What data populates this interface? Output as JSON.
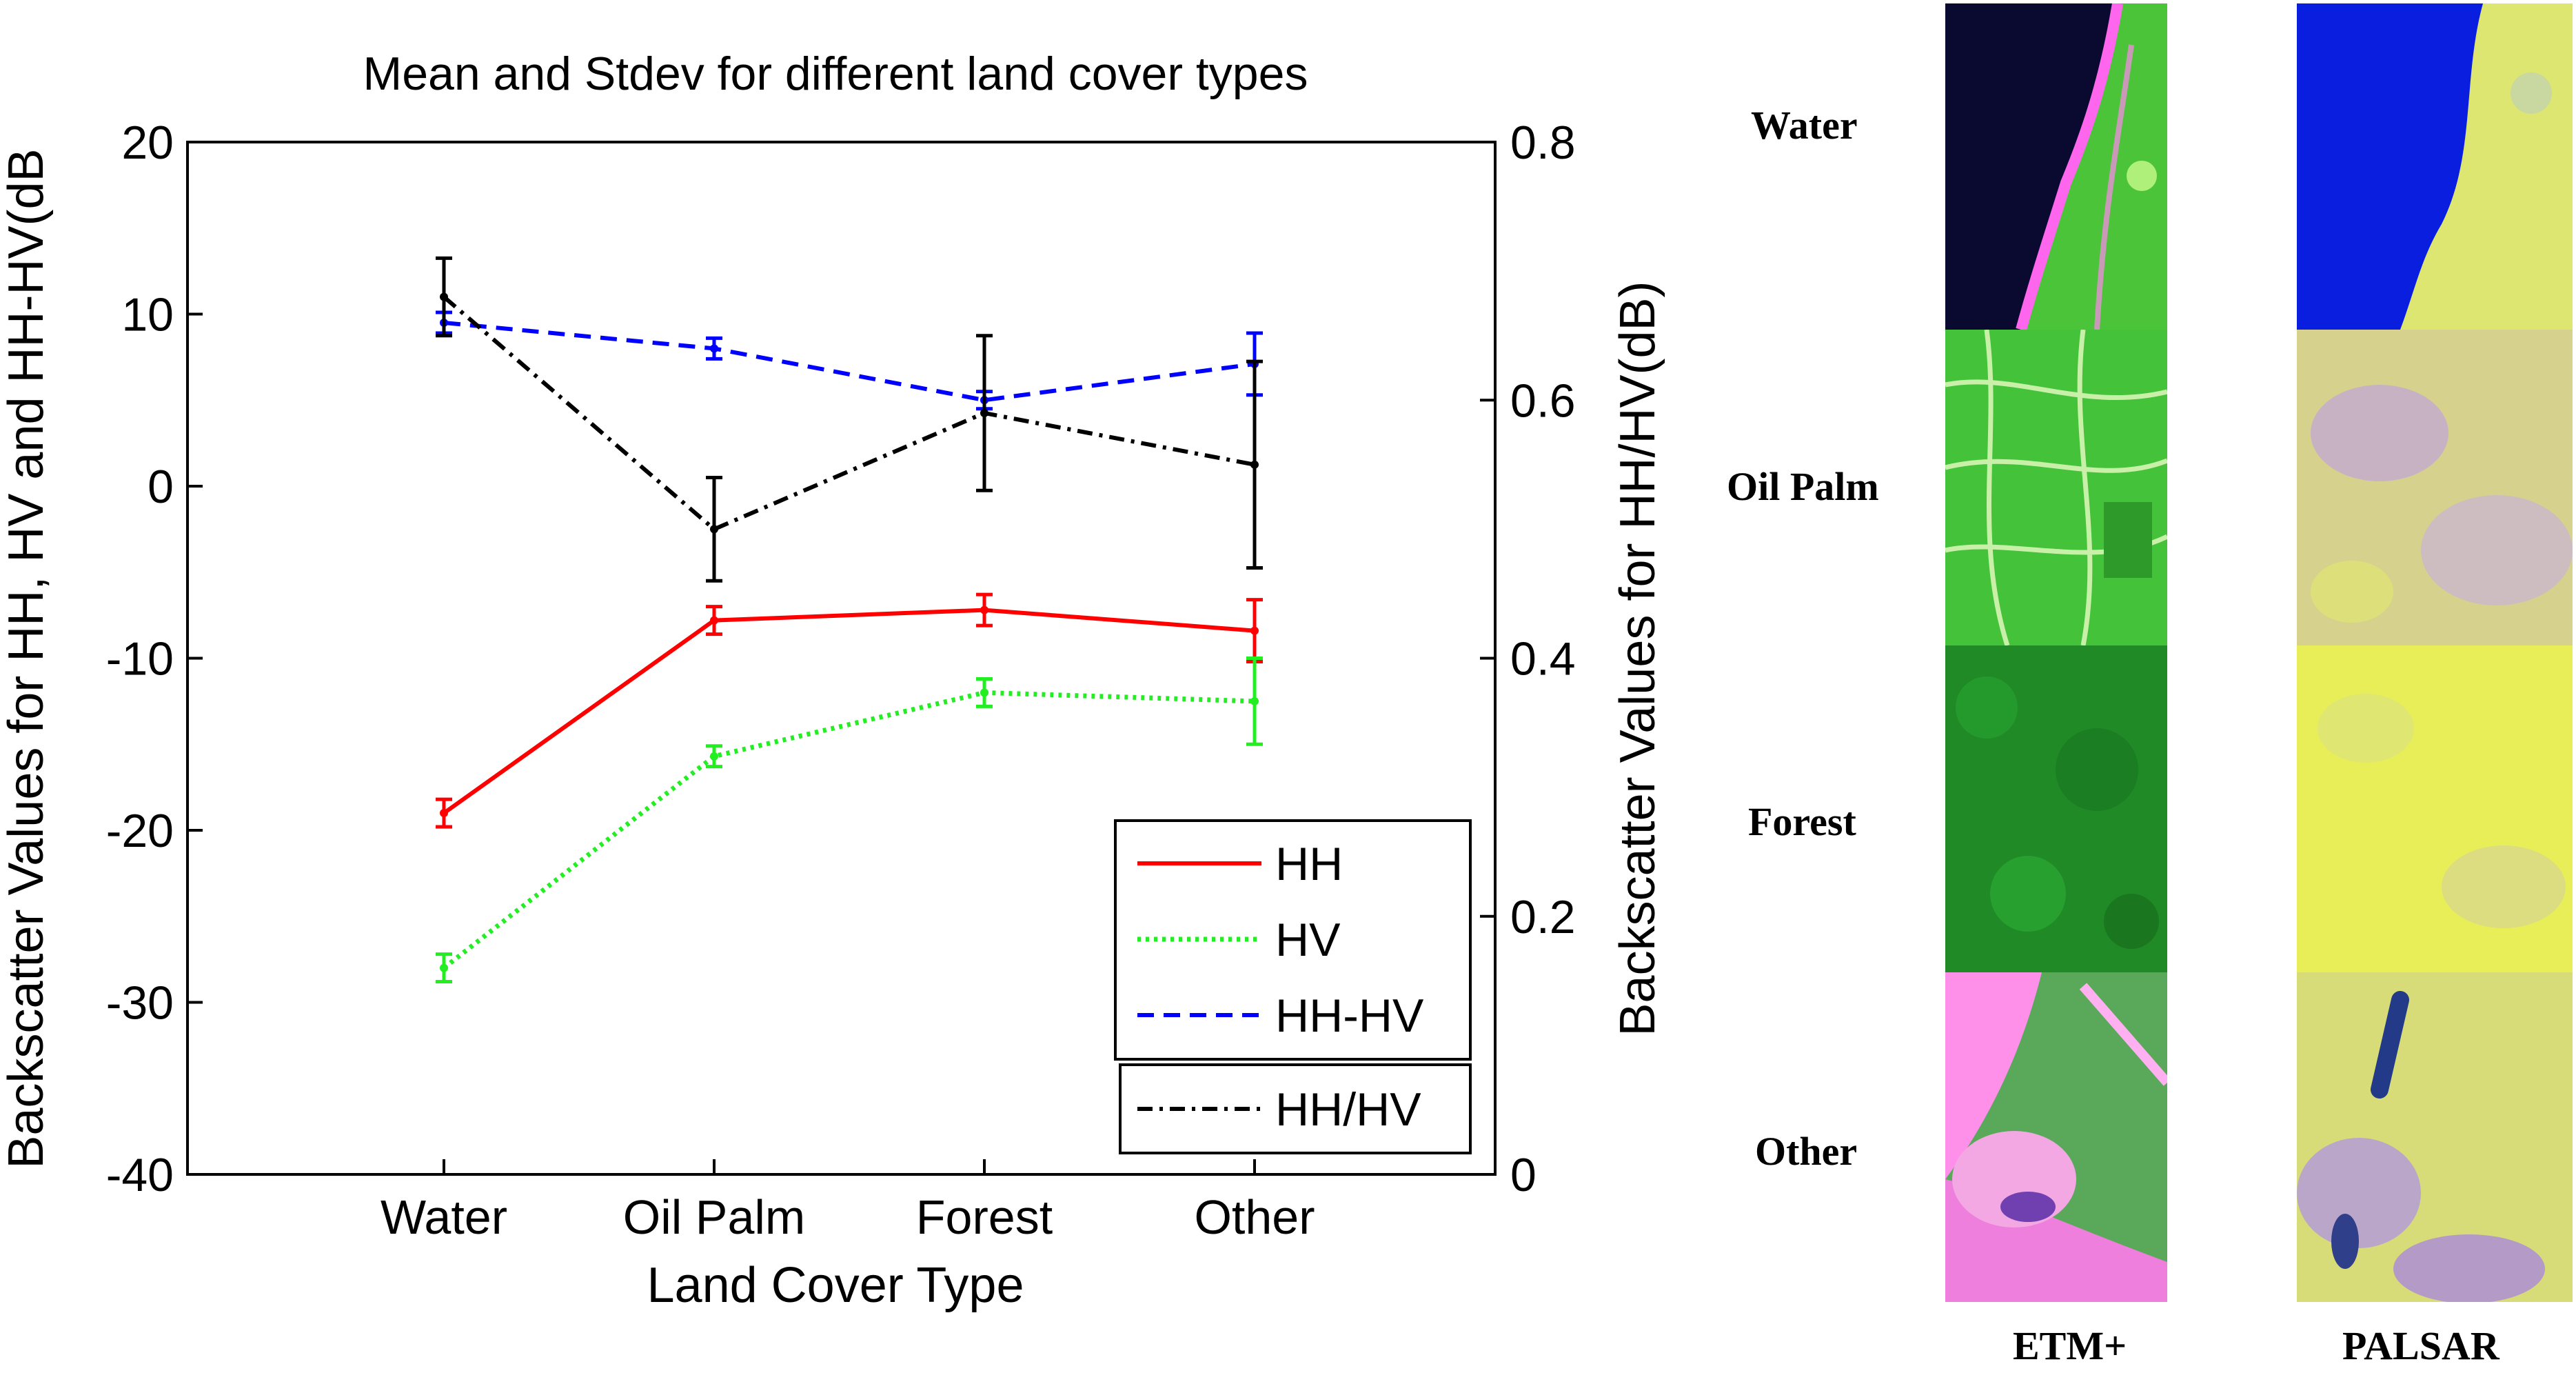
{
  "chart_data": {
    "type": "line",
    "title": "Mean and Stdev for different land cover types",
    "xlabel": "Land Cover Type",
    "ylabel": "Backscatter Values for HH, HV and HH-HV(dB",
    "ylabel_right": "Backscatter Values for HH/HV(dB)",
    "categories": [
      "Water",
      "Oil Palm",
      "Forest",
      "Other"
    ],
    "ylim": [
      -40,
      20
    ],
    "yticks": [
      "20",
      "10",
      "0",
      "-10",
      "-20",
      "-30",
      "-40"
    ],
    "ylim_right": [
      0,
      0.8
    ],
    "yticks_right": [
      "0.8",
      "0.6",
      "0.4",
      "0.2",
      "0"
    ],
    "series": [
      {
        "name": "HH",
        "axis": "left",
        "color": "#ff0000",
        "style": "solid",
        "values": [
          -19.0,
          -7.8,
          -7.2,
          -8.4
        ],
        "err": [
          0.8,
          0.8,
          0.9,
          1.8
        ]
      },
      {
        "name": "HV",
        "axis": "left",
        "color": "#22ee22",
        "style": "dotted",
        "values": [
          -28.0,
          -15.7,
          -12.0,
          -12.5
        ],
        "err": [
          0.8,
          0.6,
          0.8,
          2.5
        ]
      },
      {
        "name": "HH-HV",
        "axis": "left",
        "color": "#0000ff",
        "style": "dashed",
        "values": [
          9.5,
          8.0,
          5.0,
          7.1
        ],
        "err": [
          0.6,
          0.6,
          0.5,
          1.8
        ]
      },
      {
        "name": "HH/HV",
        "axis": "right",
        "color": "#000000",
        "style": "dashdot",
        "values": [
          0.68,
          0.5,
          0.59,
          0.55
        ],
        "err": [
          0.03,
          0.04,
          0.06,
          0.08
        ]
      }
    ],
    "legend": [
      "HH",
      "HV",
      "HH-HV",
      "HH/HV"
    ],
    "legend_position": "bottom-right"
  },
  "image_panel": {
    "row_labels": [
      "Water",
      "Oil Palm",
      "Forest",
      "Other"
    ],
    "column_labels": [
      "ETM+",
      "PALSAR"
    ]
  }
}
